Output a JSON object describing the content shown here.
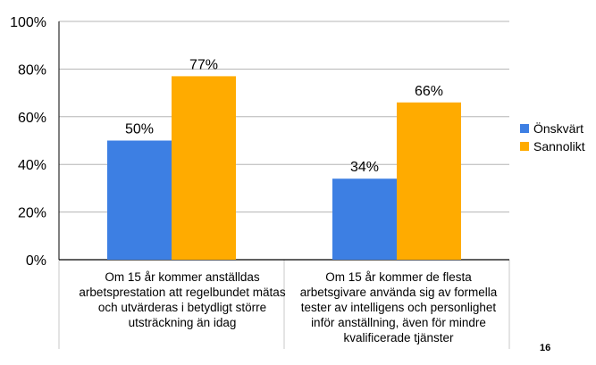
{
  "chart_data": {
    "type": "bar",
    "title": "",
    "xlabel": "",
    "ylabel": "",
    "ylim": [
      0,
      100
    ],
    "y_ticks": [
      "0%",
      "20%",
      "40%",
      "60%",
      "80%",
      "100%"
    ],
    "grid": true,
    "legend_position": "right",
    "categories": [
      "Om 15 år kommer anställdas arbetsprestation att regelbundet mätas och utvärderas i betydligt större utsträckning än idag",
      "Om 15 år kommer de flesta arbetsgivare använda sig av formella tester av intelligens och personlighet inför anställning, även för mindre kvalificerade tjänster"
    ],
    "series": [
      {
        "name": "Önskvärt",
        "color": "#3d7fe3",
        "values": [
          50,
          34
        ],
        "labels": [
          "50%",
          "34%"
        ]
      },
      {
        "name": "Sannolikt",
        "color": "#ffab00",
        "values": [
          77,
          66
        ],
        "labels": [
          "77%",
          "66%"
        ]
      }
    ]
  },
  "page_number": "16"
}
